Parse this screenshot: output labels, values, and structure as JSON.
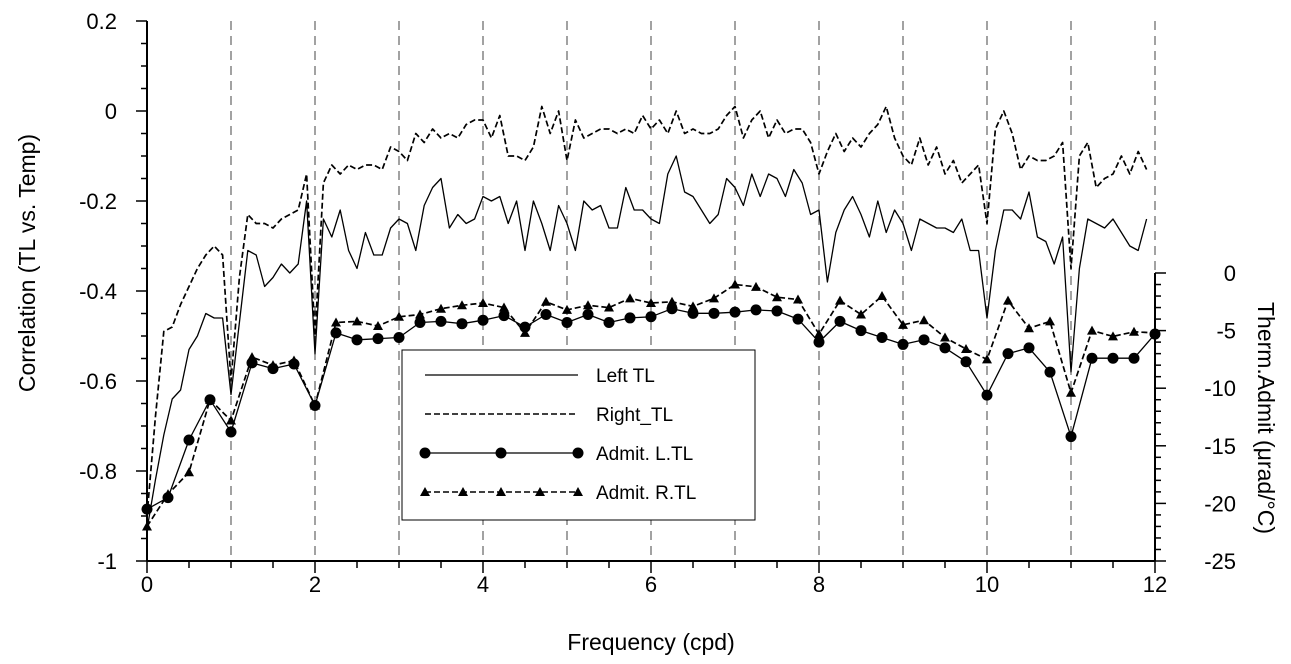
{
  "chart_data": {
    "type": "line",
    "title": "",
    "xlabel": "Frequency (cpd)",
    "ylabel": "Correlation (TL vs. Temp)",
    "y2label": "Therm.Admit (μrad/°C)",
    "xlim": [
      0,
      12
    ],
    "ylim": [
      -1,
      0.2
    ],
    "y2lim": [
      -25,
      0
    ],
    "x_ticks": [
      "0",
      "2",
      "4",
      "6",
      "8",
      "10",
      "12"
    ],
    "y_ticks": [
      "0.2",
      "0",
      "-0.2",
      "-0.4",
      "-0.6",
      "-0.8",
      "-1"
    ],
    "y2_ticks": [
      "0",
      "-5",
      "-10",
      "-15",
      "-20",
      "-25"
    ],
    "vertical_dashed_lines_at": [
      1,
      2,
      3,
      4,
      5,
      6,
      7,
      8,
      9,
      10,
      11,
      12
    ],
    "grid": false,
    "legend_position": "center-left",
    "series": [
      {
        "name": "Left TL",
        "axis": "left",
        "style": "solid",
        "x": [
          0,
          0.1,
          0.2,
          0.3,
          0.4,
          0.5,
          0.6,
          0.7,
          0.8,
          0.9,
          1.0,
          1.1,
          1.2,
          1.3,
          1.4,
          1.5,
          1.6,
          1.7,
          1.8,
          1.9,
          2.0,
          2.1,
          2.2,
          2.3,
          2.4,
          2.5,
          2.6,
          2.7,
          2.8,
          2.9,
          3.0,
          3.1,
          3.2,
          3.3,
          3.4,
          3.5,
          3.6,
          3.7,
          3.8,
          3.9,
          4.0,
          4.1,
          4.2,
          4.3,
          4.4,
          4.5,
          4.6,
          4.7,
          4.8,
          4.9,
          5.0,
          5.1,
          5.2,
          5.3,
          5.4,
          5.5,
          5.6,
          5.7,
          5.8,
          5.9,
          6.0,
          6.1,
          6.2,
          6.3,
          6.4,
          6.5,
          6.6,
          6.7,
          6.8,
          6.9,
          7.0,
          7.1,
          7.2,
          7.3,
          7.4,
          7.5,
          7.6,
          7.7,
          7.8,
          7.9,
          8.0,
          8.1,
          8.2,
          8.3,
          8.4,
          8.5,
          8.6,
          8.7,
          8.8,
          8.9,
          9.0,
          9.1,
          9.2,
          9.3,
          9.4,
          9.5,
          9.6,
          9.7,
          9.8,
          9.9,
          10.0,
          10.1,
          10.2,
          10.3,
          10.4,
          10.5,
          10.6,
          10.7,
          10.8,
          10.9,
          11.0,
          11.1,
          11.2,
          11.3,
          11.4,
          11.5,
          11.6,
          11.7,
          11.8,
          11.9
        ],
        "values": [
          -0.93,
          -0.82,
          -0.72,
          -0.64,
          -0.62,
          -0.53,
          -0.5,
          -0.45,
          -0.46,
          -0.46,
          -0.63,
          -0.47,
          -0.31,
          -0.32,
          -0.39,
          -0.37,
          -0.34,
          -0.36,
          -0.34,
          -0.2,
          -0.54,
          -0.24,
          -0.28,
          -0.22,
          -0.31,
          -0.35,
          -0.27,
          -0.32,
          -0.32,
          -0.26,
          -0.24,
          -0.25,
          -0.31,
          -0.21,
          -0.17,
          -0.15,
          -0.26,
          -0.23,
          -0.25,
          -0.24,
          -0.19,
          -0.2,
          -0.19,
          -0.25,
          -0.2,
          -0.31,
          -0.2,
          -0.25,
          -0.31,
          -0.21,
          -0.25,
          -0.31,
          -0.2,
          -0.22,
          -0.21,
          -0.26,
          -0.26,
          -0.17,
          -0.22,
          -0.22,
          -0.24,
          -0.25,
          -0.14,
          -0.1,
          -0.18,
          -0.19,
          -0.22,
          -0.25,
          -0.23,
          -0.15,
          -0.17,
          -0.21,
          -0.14,
          -0.19,
          -0.14,
          -0.15,
          -0.19,
          -0.13,
          -0.16,
          -0.23,
          -0.22,
          -0.38,
          -0.27,
          -0.22,
          -0.19,
          -0.23,
          -0.28,
          -0.2,
          -0.27,
          -0.22,
          -0.25,
          -0.31,
          -0.24,
          -0.25,
          -0.26,
          -0.26,
          -0.27,
          -0.24,
          -0.31,
          -0.31,
          -0.46,
          -0.31,
          -0.22,
          -0.22,
          -0.24,
          -0.18,
          -0.28,
          -0.29,
          -0.34,
          -0.28,
          -0.58,
          -0.35,
          -0.24,
          -0.25,
          -0.26,
          -0.24,
          -0.27,
          -0.3,
          -0.31,
          -0.24
        ]
      },
      {
        "name": "Right_TL",
        "axis": "left",
        "style": "dashed",
        "x": [
          0,
          0.1,
          0.2,
          0.3,
          0.4,
          0.5,
          0.6,
          0.7,
          0.8,
          0.9,
          1.0,
          1.1,
          1.2,
          1.3,
          1.4,
          1.5,
          1.6,
          1.7,
          1.8,
          1.9,
          2.0,
          2.1,
          2.2,
          2.3,
          2.4,
          2.5,
          2.6,
          2.7,
          2.8,
          2.9,
          3.0,
          3.1,
          3.2,
          3.3,
          3.4,
          3.5,
          3.6,
          3.7,
          3.8,
          3.9,
          4.0,
          4.1,
          4.2,
          4.3,
          4.4,
          4.5,
          4.6,
          4.7,
          4.8,
          4.9,
          5.0,
          5.1,
          5.2,
          5.3,
          5.4,
          5.5,
          5.6,
          5.7,
          5.8,
          5.9,
          6.0,
          6.1,
          6.2,
          6.3,
          6.4,
          6.5,
          6.6,
          6.7,
          6.8,
          6.9,
          7.0,
          7.1,
          7.2,
          7.3,
          7.4,
          7.5,
          7.6,
          7.7,
          7.8,
          7.9,
          8.0,
          8.1,
          8.2,
          8.3,
          8.4,
          8.5,
          8.6,
          8.7,
          8.8,
          8.9,
          9.0,
          9.1,
          9.2,
          9.3,
          9.4,
          9.5,
          9.6,
          9.7,
          9.8,
          9.9,
          10.0,
          10.1,
          10.2,
          10.3,
          10.4,
          10.5,
          10.6,
          10.7,
          10.8,
          10.9,
          11.0,
          11.1,
          11.2,
          11.3,
          11.4,
          11.5,
          11.6,
          11.7,
          11.8,
          11.9
        ],
        "values": [
          -0.9,
          -0.68,
          -0.49,
          -0.48,
          -0.43,
          -0.39,
          -0.35,
          -0.32,
          -0.3,
          -0.32,
          -0.6,
          -0.37,
          -0.23,
          -0.25,
          -0.25,
          -0.26,
          -0.24,
          -0.23,
          -0.22,
          -0.14,
          -0.5,
          -0.16,
          -0.12,
          -0.14,
          -0.12,
          -0.13,
          -0.12,
          -0.12,
          -0.13,
          -0.08,
          -0.09,
          -0.11,
          -0.05,
          -0.07,
          -0.04,
          -0.06,
          -0.05,
          -0.06,
          -0.03,
          -0.02,
          -0.02,
          -0.06,
          -0.01,
          -0.1,
          -0.1,
          -0.11,
          -0.08,
          0.01,
          -0.05,
          0.0,
          -0.11,
          -0.02,
          -0.06,
          -0.05,
          -0.04,
          -0.04,
          -0.05,
          -0.04,
          -0.05,
          -0.01,
          -0.04,
          -0.02,
          -0.05,
          0.0,
          -0.05,
          -0.04,
          -0.05,
          -0.05,
          -0.04,
          -0.01,
          0.01,
          -0.06,
          -0.02,
          0.0,
          -0.06,
          -0.02,
          -0.05,
          -0.04,
          -0.04,
          -0.07,
          -0.14,
          -0.09,
          -0.05,
          -0.09,
          -0.06,
          -0.08,
          -0.05,
          -0.03,
          0.01,
          -0.06,
          -0.1,
          -0.12,
          -0.06,
          -0.12,
          -0.08,
          -0.14,
          -0.11,
          -0.16,
          -0.14,
          -0.12,
          -0.25,
          -0.04,
          0.0,
          -0.05,
          -0.13,
          -0.1,
          -0.11,
          -0.11,
          -0.1,
          -0.07,
          -0.35,
          -0.1,
          -0.07,
          -0.17,
          -0.15,
          -0.14,
          -0.1,
          -0.14,
          -0.09,
          -0.13
        ]
      },
      {
        "name": "Admit. L.TL",
        "axis": "right",
        "style": "solid-circle",
        "x": [
          0,
          0.25,
          0.5,
          0.75,
          1.0,
          1.25,
          1.5,
          1.75,
          2.0,
          2.25,
          2.5,
          2.75,
          3.0,
          3.25,
          3.5,
          3.75,
          4.0,
          4.25,
          4.5,
          4.75,
          5.0,
          5.25,
          5.5,
          5.75,
          6.0,
          6.25,
          6.5,
          6.75,
          7.0,
          7.25,
          7.5,
          7.75,
          8.0,
          8.25,
          8.5,
          8.75,
          9.0,
          9.25,
          9.5,
          9.75,
          10.0,
          10.25,
          10.5,
          10.75,
          11.0,
          11.25,
          11.5,
          11.75,
          12.0
        ],
        "values": [
          -20.5,
          -19.5,
          -14.5,
          -11.0,
          -13.8,
          -7.8,
          -8.3,
          -7.9,
          -11.5,
          -5.2,
          -5.8,
          -5.7,
          -5.6,
          -4.3,
          -4.2,
          -4.4,
          -4.1,
          -3.7,
          -4.7,
          -3.6,
          -4.3,
          -3.6,
          -4.3,
          -3.9,
          -3.8,
          -3.1,
          -3.5,
          -3.5,
          -3.4,
          -3.2,
          -3.3,
          -4.0,
          -6.0,
          -4.2,
          -5.0,
          -5.6,
          -6.2,
          -5.8,
          -6.5,
          -7.7,
          -10.6,
          -7.0,
          -6.5,
          -8.6,
          -14.2,
          -7.4,
          -7.4,
          -7.4,
          -5.3
        ]
      },
      {
        "name": "Admit. R.TL",
        "axis": "right",
        "style": "dashed-triangle",
        "x": [
          0,
          0.25,
          0.5,
          0.75,
          1.0,
          1.25,
          1.5,
          1.75,
          2.0,
          2.25,
          2.5,
          2.75,
          3.0,
          3.25,
          3.5,
          3.75,
          4.0,
          4.25,
          4.5,
          4.75,
          5.0,
          5.25,
          5.5,
          5.75,
          6.0,
          6.25,
          6.5,
          6.75,
          7.0,
          7.25,
          7.5,
          7.75,
          8.0,
          8.25,
          8.5,
          8.75,
          9.0,
          9.25,
          9.5,
          9.75,
          10.0,
          10.25,
          10.5,
          10.75,
          11.0,
          11.25,
          11.5,
          11.75,
          12.0
        ],
        "values": [
          -22.0,
          -19.2,
          -17.3,
          -11.0,
          -12.8,
          -7.3,
          -8.0,
          -7.6,
          -11.5,
          -4.3,
          -4.2,
          -4.6,
          -3.8,
          -3.6,
          -3.1,
          -2.8,
          -2.6,
          -3.0,
          -5.2,
          -2.5,
          -3.2,
          -2.8,
          -3.0,
          -2.2,
          -2.6,
          -2.5,
          -2.9,
          -2.2,
          -1.0,
          -1.2,
          -2.1,
          -2.3,
          -5.3,
          -2.4,
          -3.6,
          -2.0,
          -4.5,
          -4.1,
          -5.6,
          -6.6,
          -7.5,
          -2.4,
          -4.8,
          -4.2,
          -10.4,
          -5.0,
          -5.5,
          -5.1,
          -5.2
        ]
      }
    ]
  }
}
